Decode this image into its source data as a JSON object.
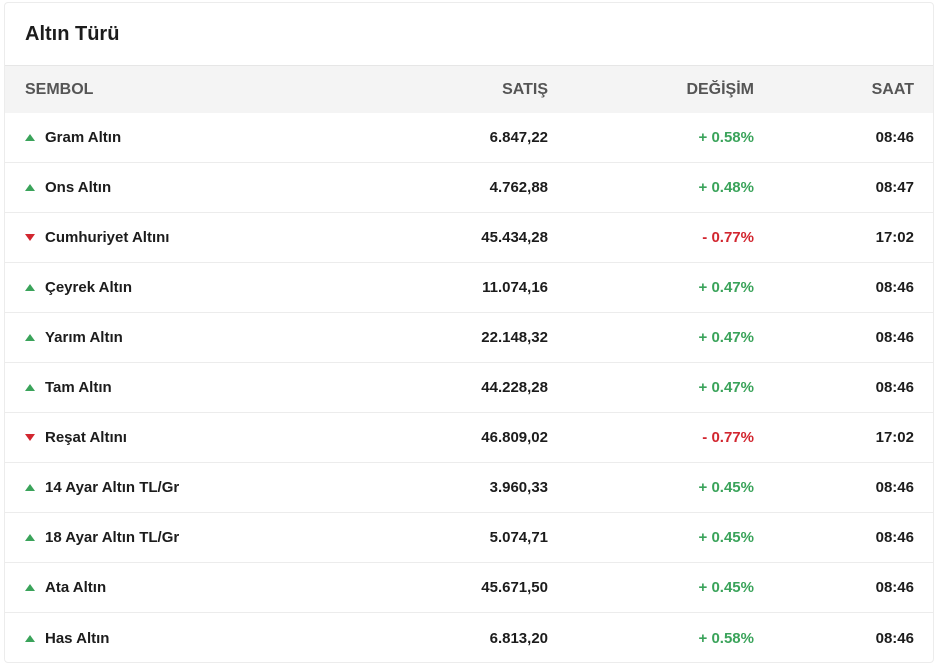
{
  "title": "Altın Türü",
  "headers": {
    "symbol": "SEMBOL",
    "sell": "SATIŞ",
    "change": "DEĞİŞİM",
    "time": "SAAT"
  },
  "colors": {
    "up": "#3aa35a",
    "down": "#d2262f"
  },
  "rows": [
    {
      "name": "Gram Altın",
      "sell": "6.847,22",
      "change": "+ 0.58%",
      "time": "08:46",
      "direction": "up",
      "icon": "triangle-up-icon"
    },
    {
      "name": "Ons Altın",
      "sell": "4.762,88",
      "change": "+ 0.48%",
      "time": "08:47",
      "direction": "up",
      "icon": "triangle-up-icon"
    },
    {
      "name": "Cumhuriyet Altını",
      "sell": "45.434,28",
      "change": "- 0.77%",
      "time": "17:02",
      "direction": "down",
      "icon": "triangle-down-icon"
    },
    {
      "name": "Çeyrek Altın",
      "sell": "11.074,16",
      "change": "+ 0.47%",
      "time": "08:46",
      "direction": "up",
      "icon": "triangle-up-icon"
    },
    {
      "name": "Yarım Altın",
      "sell": "22.148,32",
      "change": "+ 0.47%",
      "time": "08:46",
      "direction": "up",
      "icon": "triangle-up-icon"
    },
    {
      "name": "Tam Altın",
      "sell": "44.228,28",
      "change": "+ 0.47%",
      "time": "08:46",
      "direction": "up",
      "icon": "triangle-up-icon"
    },
    {
      "name": "Reşat Altını",
      "sell": "46.809,02",
      "change": "- 0.77%",
      "time": "17:02",
      "direction": "down",
      "icon": "triangle-down-icon"
    },
    {
      "name": "14 Ayar Altın TL/Gr",
      "sell": "3.960,33",
      "change": "+ 0.45%",
      "time": "08:46",
      "direction": "up",
      "icon": "triangle-up-icon"
    },
    {
      "name": "18 Ayar Altın TL/Gr",
      "sell": "5.074,71",
      "change": "+ 0.45%",
      "time": "08:46",
      "direction": "up",
      "icon": "triangle-up-icon"
    },
    {
      "name": "Ata Altın",
      "sell": "45.671,50",
      "change": "+ 0.45%",
      "time": "08:46",
      "direction": "up",
      "icon": "triangle-up-icon"
    },
    {
      "name": "Has Altın",
      "sell": "6.813,20",
      "change": "+ 0.58%",
      "time": "08:46",
      "direction": "up",
      "icon": "triangle-up-icon"
    }
  ]
}
